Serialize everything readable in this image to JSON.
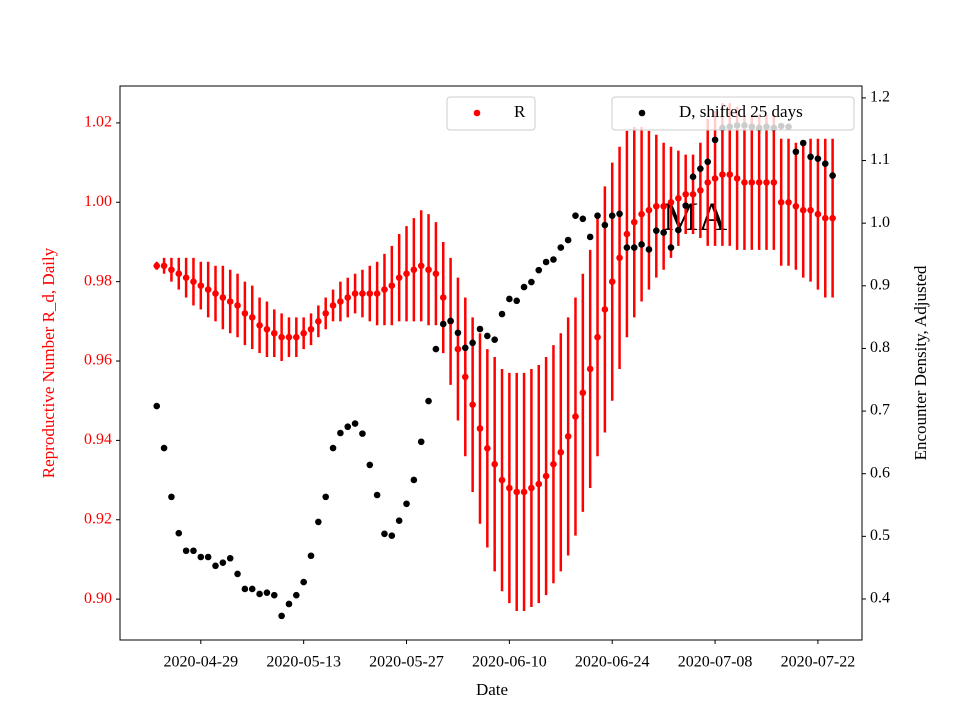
{
  "chart_data": {
    "type": "errorbar_dual",
    "xlabel": "Date",
    "ylabel": "Reproductive Number R_d, Daily",
    "y2label": "Encounter Density, Adjusted",
    "annotation": "MA",
    "x": [
      "2020-04-23",
      "2020-04-24",
      "2020-04-25",
      "2020-04-26",
      "2020-04-27",
      "2020-04-28",
      "2020-04-29",
      "2020-04-30",
      "2020-05-01",
      "2020-05-02",
      "2020-05-03",
      "2020-05-04",
      "2020-05-05",
      "2020-05-06",
      "2020-05-07",
      "2020-05-08",
      "2020-05-09",
      "2020-05-10",
      "2020-05-11",
      "2020-05-12",
      "2020-05-13",
      "2020-05-14",
      "2020-05-15",
      "2020-05-16",
      "2020-05-17",
      "2020-05-18",
      "2020-05-19",
      "2020-05-20",
      "2020-05-21",
      "2020-05-22",
      "2020-05-23",
      "2020-05-24",
      "2020-05-25",
      "2020-05-26",
      "2020-05-27",
      "2020-05-28",
      "2020-05-29",
      "2020-05-30",
      "2020-05-31",
      "2020-06-01",
      "2020-06-02",
      "2020-06-03",
      "2020-06-04",
      "2020-06-05",
      "2020-06-06",
      "2020-06-07",
      "2020-06-08",
      "2020-06-09",
      "2020-06-10",
      "2020-06-11",
      "2020-06-12",
      "2020-06-13",
      "2020-06-14",
      "2020-06-15",
      "2020-06-16",
      "2020-06-17",
      "2020-06-18",
      "2020-06-19",
      "2020-06-20",
      "2020-06-21",
      "2020-06-22",
      "2020-06-23",
      "2020-06-24",
      "2020-06-25",
      "2020-06-26",
      "2020-06-27",
      "2020-06-28",
      "2020-06-29",
      "2020-06-30",
      "2020-07-01",
      "2020-07-02",
      "2020-07-03",
      "2020-07-04",
      "2020-07-05",
      "2020-07-06",
      "2020-07-07",
      "2020-07-08",
      "2020-07-09",
      "2020-07-10",
      "2020-07-11",
      "2020-07-12",
      "2020-07-13",
      "2020-07-14",
      "2020-07-15",
      "2020-07-16",
      "2020-07-17",
      "2020-07-18",
      "2020-07-19",
      "2020-07-20",
      "2020-07-21",
      "2020-07-22",
      "2020-07-23",
      "2020-07-24"
    ],
    "series": [
      {
        "name": "R",
        "color": "#ff0000",
        "axis": "y",
        "legend_loc": "upper center",
        "values": [
          0.984,
          0.984,
          0.983,
          0.982,
          0.981,
          0.98,
          0.979,
          0.978,
          0.977,
          0.976,
          0.975,
          0.974,
          0.972,
          0.971,
          0.969,
          0.968,
          0.967,
          0.966,
          0.966,
          0.966,
          0.967,
          0.968,
          0.97,
          0.972,
          0.974,
          0.975,
          0.976,
          0.977,
          0.977,
          0.977,
          0.977,
          0.978,
          0.979,
          0.981,
          0.982,
          0.983,
          0.984,
          0.983,
          0.982,
          0.976,
          0.97,
          0.963,
          0.956,
          0.949,
          0.943,
          0.938,
          0.934,
          0.93,
          0.928,
          0.927,
          0.927,
          0.928,
          0.929,
          0.931,
          0.934,
          0.937,
          0.941,
          0.946,
          0.952,
          0.958,
          0.966,
          0.973,
          0.98,
          0.986,
          0.992,
          0.995,
          0.997,
          0.998,
          0.999,
          0.999,
          1.0,
          1.001,
          1.002,
          1.002,
          1.003,
          1.005,
          1.006,
          1.007,
          1.007,
          1.006,
          1.005,
          1.005,
          1.005,
          1.005,
          1.005,
          1.0,
          1.0,
          0.999,
          0.998,
          0.998,
          0.997,
          0.996,
          0.996
        ],
        "errors": [
          0.001,
          0.002,
          0.003,
          0.004,
          0.005,
          0.006,
          0.006,
          0.007,
          0.007,
          0.008,
          0.008,
          0.008,
          0.008,
          0.008,
          0.007,
          0.007,
          0.006,
          0.006,
          0.005,
          0.005,
          0.004,
          0.004,
          0.004,
          0.004,
          0.004,
          0.005,
          0.005,
          0.005,
          0.006,
          0.007,
          0.008,
          0.009,
          0.01,
          0.011,
          0.012,
          0.013,
          0.014,
          0.014,
          0.013,
          0.014,
          0.016,
          0.018,
          0.02,
          0.022,
          0.024,
          0.025,
          0.027,
          0.028,
          0.029,
          0.03,
          0.03,
          0.03,
          0.03,
          0.03,
          0.03,
          0.03,
          0.03,
          0.03,
          0.03,
          0.03,
          0.03,
          0.031,
          0.03,
          0.028,
          0.026,
          0.024,
          0.022,
          0.02,
          0.018,
          0.016,
          0.014,
          0.012,
          0.01,
          0.01,
          0.012,
          0.016,
          0.017,
          0.018,
          0.018,
          0.018,
          0.017,
          0.017,
          0.017,
          0.017,
          0.017,
          0.016,
          0.016,
          0.016,
          0.017,
          0.018,
          0.019,
          0.02,
          0.02
        ]
      },
      {
        "name": "D, shifted 25 days",
        "color": "#000000",
        "axis": "y2",
        "legend_loc": "upper right",
        "values": [
          0.708,
          0.641,
          0.563,
          0.505,
          0.477,
          0.477,
          0.467,
          0.467,
          0.453,
          0.458,
          0.465,
          0.44,
          0.416,
          0.416,
          0.408,
          0.41,
          0.406,
          0.373,
          0.392,
          0.406,
          0.427,
          0.469,
          0.523,
          0.563,
          0.641,
          0.665,
          0.675,
          0.68,
          0.664,
          0.614,
          0.566,
          0.504,
          0.501,
          0.525,
          0.552,
          0.59,
          0.651,
          0.716,
          0.799,
          0.839,
          0.844,
          0.825,
          0.801,
          0.809,
          0.831,
          0.82,
          0.814,
          0.855,
          0.879,
          0.876,
          0.898,
          0.906,
          0.925,
          0.938,
          0.942,
          0.961,
          0.973,
          1.012,
          1.007,
          0.978,
          1.012,
          0.997,
          1.012,
          1.015,
          0.961,
          0.961,
          0.966,
          0.958,
          0.988,
          0.985,
          0.961,
          0.989,
          1.028,
          1.074,
          1.087,
          1.098,
          1.133,
          1.152,
          1.154,
          1.156,
          1.156,
          1.154,
          1.152,
          1.154,
          1.152,
          1.155,
          1.154,
          1.114,
          1.128,
          1.106,
          1.103,
          1.095,
          1.076
        ]
      }
    ],
    "xlim": [
      "2020-04-18",
      "2020-07-28"
    ],
    "xticks": [
      "2020-04-29",
      "2020-05-13",
      "2020-05-27",
      "2020-06-10",
      "2020-06-24",
      "2020-07-08",
      "2020-07-22"
    ],
    "ylim": [
      0.8897,
      1.0293
    ],
    "yticks": [
      {
        "value": 0.9,
        "label": "0.90"
      },
      0.92,
      0.94,
      0.96,
      0.98,
      {
        "value": 1,
        "label": "1.00"
      },
      1.02
    ],
    "y2lim": [
      0.3345,
      1.219
    ],
    "y2ticks": [
      0.4,
      0.5,
      0.6,
      0.7,
      0.8,
      0.9,
      {
        "value": 1,
        "label": "1.0"
      },
      1.1,
      1.2
    ]
  }
}
